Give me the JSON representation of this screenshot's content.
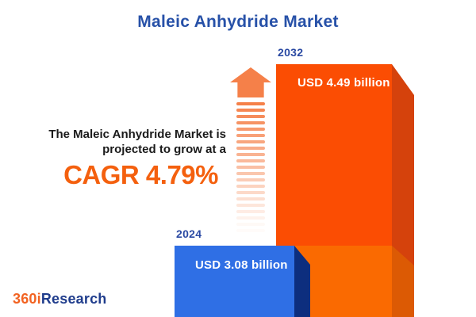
{
  "title": "Maleic Anhydride Market",
  "description": {
    "line1": "The Maleic Anhydride Market is",
    "line2": "projected to grow at a",
    "cagr": "CAGR 4.79%"
  },
  "chart_data": {
    "type": "bar",
    "categories": [
      "2024",
      "2032"
    ],
    "values": [
      3.08,
      4.49
    ],
    "value_labels": [
      "USD 3.08 billion",
      "USD 4.49 billion"
    ],
    "unit": "USD billion",
    "title": "Maleic Anhydride Market",
    "cagr_percent": 4.79,
    "ylim": [
      0,
      4.49
    ],
    "grid": false,
    "legend": "none",
    "bar_colors": [
      "#2F6FE5",
      "#FB4D03"
    ]
  },
  "logo": {
    "prefix": "360i",
    "suffix": "Research"
  },
  "colors": {
    "background": "#ffffff",
    "title-blue": "#2751A8",
    "year-blue": "#2B4AA3",
    "text-dark": "#1A1A1A",
    "cagr-orange": "#F4600E",
    "arrow-orange": "#F58049",
    "bar2024-front": "#2F6FE5",
    "bar2024-side": "#0D2E7E",
    "bar2032-front-top": "#FB4D03",
    "bar2032-front-bottom": "#FA6A01",
    "bar2032-side-top": "#D5420C",
    "bar2032-side-bottom": "#DC5A04",
    "logo-orange": "#F26322",
    "logo-blue": "#1F3C8C"
  }
}
